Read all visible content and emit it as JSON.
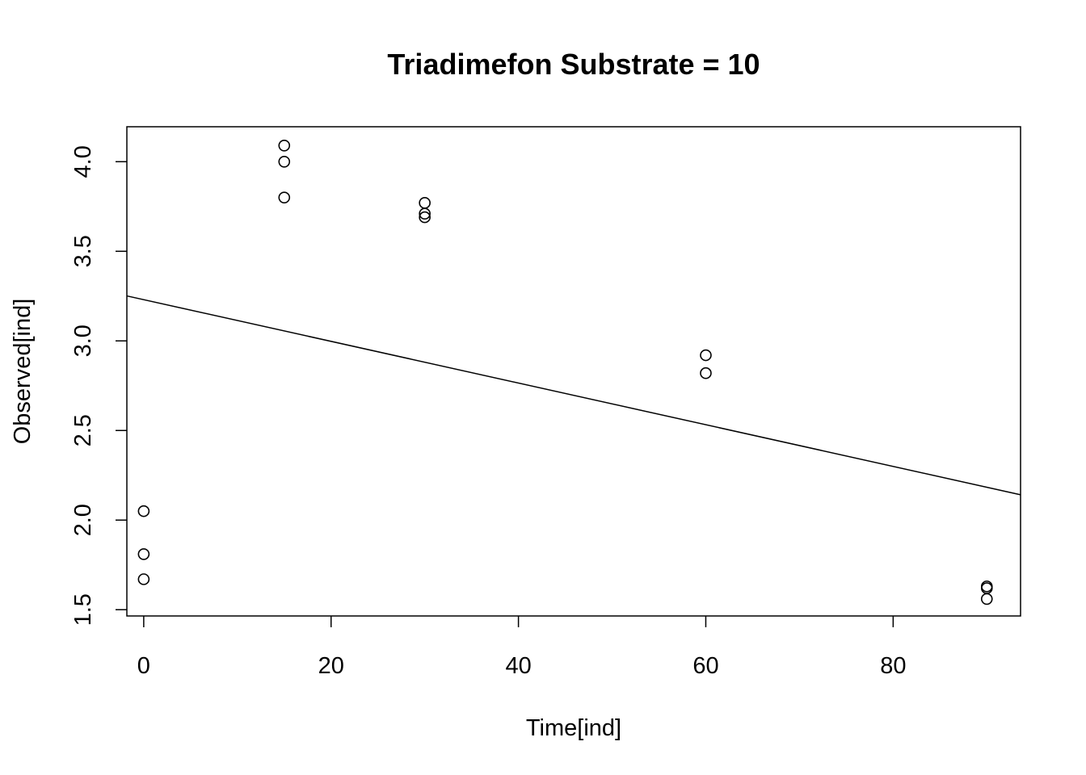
{
  "chart_data": {
    "type": "scatter",
    "title": "Triadimefon Substrate = 10",
    "xlabel": "Time[ind]",
    "ylabel": "Observed[ind]",
    "xlim": [
      -1.8,
      93.6
    ],
    "ylim": [
      1.465,
      4.195
    ],
    "xticks": [
      0,
      20,
      40,
      60,
      80
    ],
    "yticks": [
      1.5,
      2.0,
      2.5,
      3.0,
      3.5,
      4.0
    ],
    "xtick_labels": [
      "0",
      "20",
      "40",
      "60",
      "80"
    ],
    "ytick_labels": [
      "1.5",
      "2.0",
      "2.5",
      "3.0",
      "3.5",
      "4.0"
    ],
    "grid": false,
    "series": [
      {
        "x": [
          0,
          0,
          0,
          15,
          15,
          15,
          30,
          30,
          30,
          60,
          60,
          90,
          90,
          90
        ],
        "y": [
          2.05,
          1.81,
          1.67,
          4.09,
          4.0,
          3.8,
          3.77,
          3.71,
          3.69,
          2.92,
          2.82,
          1.63,
          1.62,
          1.56
        ]
      }
    ],
    "fit_line": {
      "intercept": 3.23,
      "slope": -0.01163
    }
  }
}
